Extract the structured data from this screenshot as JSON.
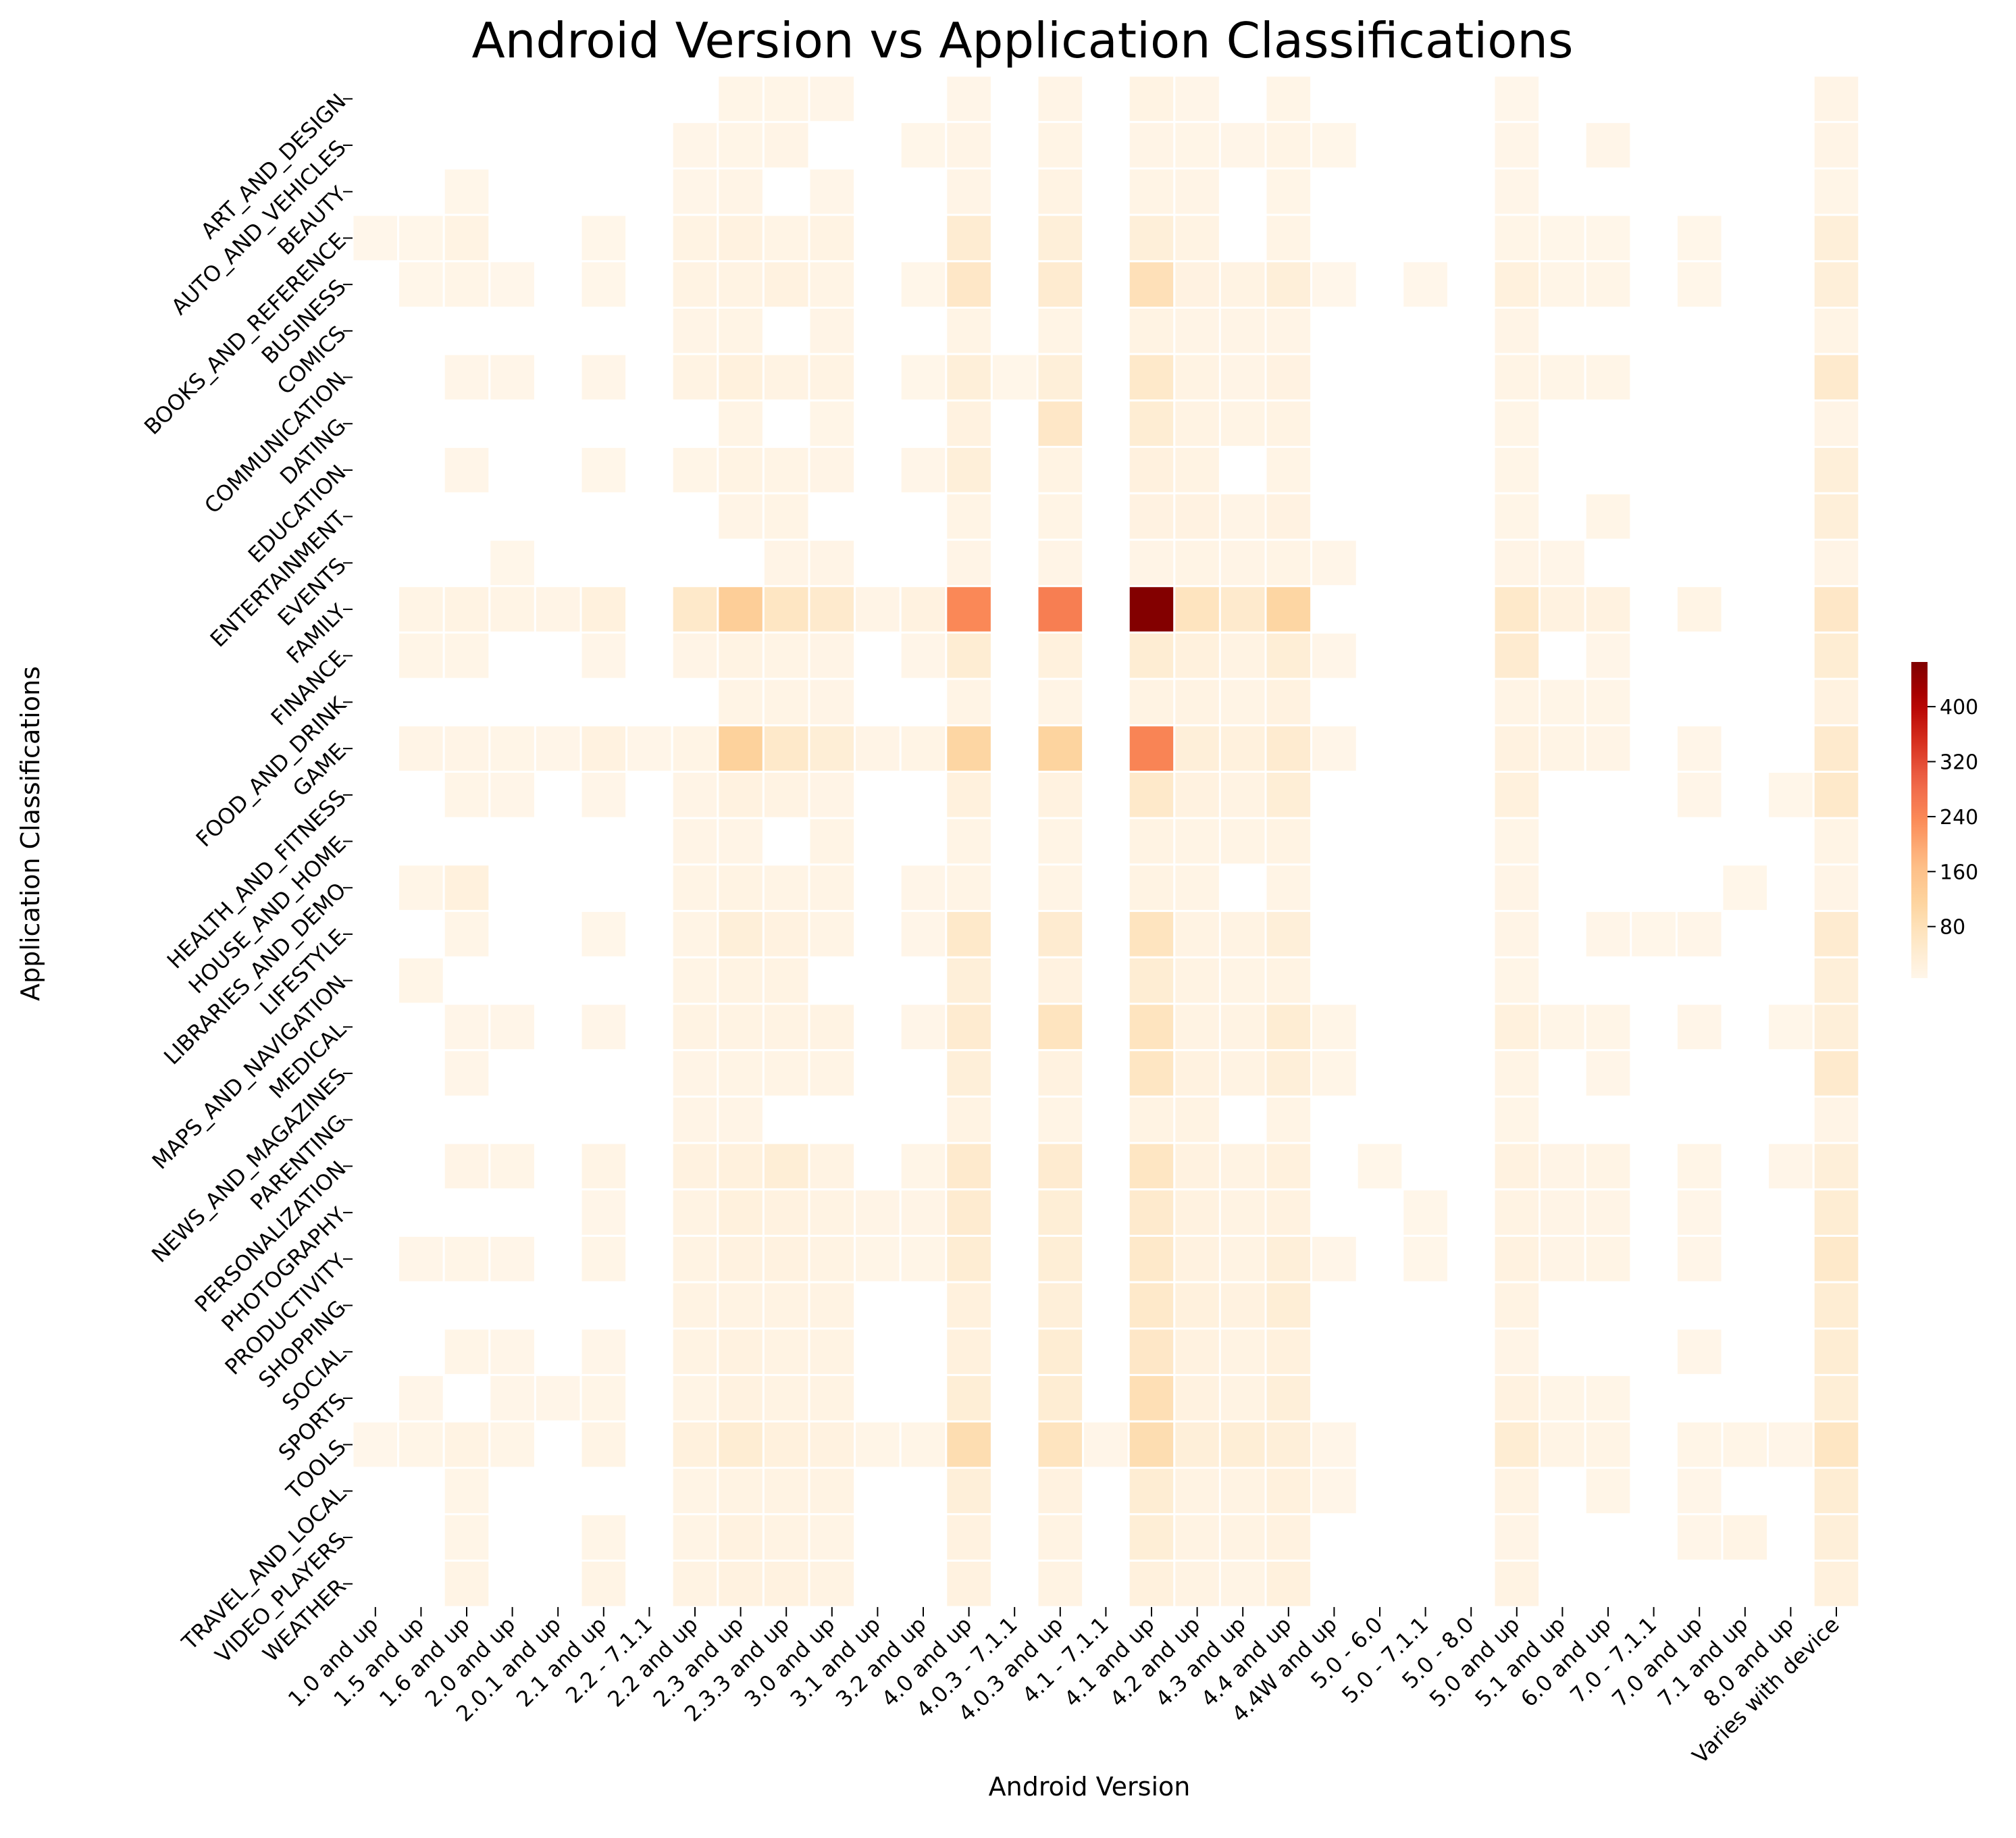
{
  "chart_data": {
    "type": "heatmap",
    "title": "Android Version vs Application Classifications",
    "xlabel": "Android Version",
    "ylabel": "Application Classifications",
    "x_categories": [
      "1.0 and up",
      "1.5 and up",
      "1.6 and up",
      "2.0 and up",
      "2.0.1 and up",
      "2.1 and up",
      "2.2 - 7.1.1",
      "2.2 and up",
      "2.3 and up",
      "2.3.3 and up",
      "3.0 and up",
      "3.1 and up",
      "3.2 and up",
      "4.0 and up",
      "4.0.3 - 7.1.1",
      "4.0.3 and up",
      "4.1 - 7.1.1",
      "4.1 and up",
      "4.2 and up",
      "4.3 and up",
      "4.4 and up",
      "4.4W and up",
      "5.0 - 6.0",
      "5.0 - 7.1.1",
      "5.0 - 8.0",
      "5.0 and up",
      "5.1 and up",
      "6.0 and up",
      "7.0 - 7.1.1",
      "7.0 and up",
      "7.1 and up",
      "8.0 and up",
      "Varies with device"
    ],
    "y_categories": [
      "ART_AND_DESIGN",
      "AUTO_AND_VEHICLES",
      "BEAUTY",
      "BOOKS_AND_REFERENCE",
      "BUSINESS",
      "COMICS",
      "COMMUNICATION",
      "DATING",
      "EDUCATION",
      "ENTERTAINMENT",
      "EVENTS",
      "FAMILY",
      "FINANCE",
      "FOOD_AND_DRINK",
      "GAME",
      "HEALTH_AND_FITNESS",
      "HOUSE_AND_HOME",
      "LIBRARIES_AND_DEMO",
      "LIFESTYLE",
      "MAPS_AND_NAVIGATION",
      "MEDICAL",
      "NEWS_AND_MAGAZINES",
      "PARENTING",
      "PERSONALIZATION",
      "PHOTOGRAPHY",
      "PRODUCTIVITY",
      "SHOPPING",
      "SOCIAL",
      "SPORTS",
      "TOOLS",
      "TRAVEL_AND_LOCAL",
      "VIDEO_PLAYERS",
      "WEATHER"
    ],
    "values": [
      [
        0,
        0,
        0,
        0,
        0,
        0,
        0,
        0,
        8,
        8,
        6,
        0,
        0,
        7,
        0,
        10,
        0,
        14,
        6,
        0,
        8,
        0,
        0,
        0,
        0,
        4,
        0,
        0,
        0,
        0,
        0,
        0,
        10
      ],
      [
        0,
        0,
        0,
        0,
        0,
        0,
        0,
        6,
        8,
        10,
        0,
        0,
        5,
        10,
        0,
        12,
        0,
        10,
        8,
        6,
        12,
        5,
        0,
        0,
        0,
        6,
        0,
        6,
        0,
        0,
        0,
        0,
        10
      ],
      [
        0,
        0,
        5,
        0,
        0,
        0,
        0,
        6,
        10,
        0,
        7,
        0,
        0,
        10,
        0,
        14,
        0,
        12,
        10,
        0,
        8,
        0,
        0,
        0,
        0,
        6,
        0,
        0,
        0,
        0,
        0,
        0,
        8
      ],
      [
        3,
        5,
        15,
        0,
        0,
        5,
        0,
        15,
        20,
        12,
        15,
        0,
        0,
        42,
        0,
        30,
        0,
        30,
        15,
        0,
        12,
        0,
        0,
        0,
        0,
        8,
        5,
        5,
        0,
        5,
        0,
        0,
        30
      ],
      [
        0,
        5,
        8,
        4,
        0,
        5,
        0,
        15,
        15,
        20,
        12,
        0,
        5,
        60,
        0,
        45,
        0,
        80,
        18,
        15,
        30,
        4,
        0,
        4,
        0,
        25,
        8,
        8,
        0,
        5,
        0,
        0,
        30
      ],
      [
        0,
        0,
        0,
        0,
        0,
        0,
        0,
        10,
        12,
        0,
        10,
        0,
        0,
        12,
        0,
        12,
        0,
        15,
        10,
        10,
        10,
        0,
        0,
        0,
        0,
        10,
        0,
        0,
        0,
        0,
        0,
        0,
        12
      ],
      [
        0,
        0,
        6,
        6,
        0,
        6,
        0,
        15,
        25,
        15,
        15,
        0,
        5,
        30,
        5,
        30,
        0,
        55,
        15,
        10,
        18,
        0,
        0,
        0,
        0,
        12,
        8,
        8,
        0,
        0,
        0,
        0,
        50
      ],
      [
        0,
        0,
        0,
        0,
        0,
        0,
        0,
        0,
        12,
        0,
        8,
        0,
        0,
        20,
        0,
        60,
        0,
        40,
        15,
        12,
        15,
        0,
        0,
        0,
        0,
        8,
        0,
        0,
        0,
        0,
        0,
        0,
        10
      ],
      [
        0,
        0,
        6,
        0,
        0,
        5,
        0,
        8,
        15,
        12,
        10,
        0,
        6,
        30,
        0,
        15,
        0,
        22,
        15,
        0,
        12,
        0,
        0,
        0,
        0,
        8,
        0,
        0,
        0,
        0,
        0,
        0,
        30
      ],
      [
        0,
        0,
        0,
        0,
        0,
        0,
        0,
        0,
        10,
        12,
        0,
        0,
        0,
        12,
        0,
        12,
        0,
        18,
        18,
        10,
        18,
        0,
        0,
        0,
        0,
        8,
        0,
        8,
        0,
        0,
        0,
        0,
        30
      ],
      [
        0,
        0,
        0,
        5,
        0,
        0,
        0,
        0,
        0,
        10,
        10,
        0,
        0,
        10,
        0,
        10,
        0,
        10,
        12,
        10,
        12,
        6,
        0,
        0,
        0,
        10,
        6,
        0,
        0,
        0,
        0,
        0,
        10
      ],
      [
        0,
        12,
        15,
        12,
        10,
        25,
        0,
        55,
        130,
        65,
        50,
        10,
        20,
        240,
        0,
        255,
        0,
        460,
        70,
        50,
        110,
        0,
        0,
        0,
        0,
        55,
        20,
        20,
        0,
        12,
        0,
        0,
        60
      ],
      [
        0,
        8,
        8,
        0,
        0,
        6,
        0,
        10,
        15,
        12,
        10,
        0,
        6,
        40,
        0,
        25,
        0,
        40,
        25,
        15,
        35,
        6,
        0,
        0,
        0,
        45,
        0,
        6,
        0,
        0,
        0,
        0,
        40
      ],
      [
        0,
        0,
        0,
        0,
        0,
        0,
        0,
        0,
        12,
        12,
        10,
        0,
        0,
        12,
        0,
        12,
        0,
        15,
        15,
        12,
        20,
        0,
        0,
        0,
        0,
        12,
        8,
        8,
        0,
        0,
        0,
        0,
        20
      ],
      [
        0,
        10,
        10,
        8,
        6,
        20,
        6,
        12,
        120,
        55,
        35,
        10,
        12,
        110,
        0,
        115,
        0,
        245,
        30,
        25,
        45,
        6,
        0,
        0,
        0,
        20,
        12,
        10,
        0,
        6,
        0,
        0,
        50
      ],
      [
        0,
        0,
        8,
        6,
        0,
        6,
        0,
        10,
        20,
        15,
        10,
        0,
        0,
        25,
        0,
        20,
        0,
        55,
        20,
        15,
        35,
        0,
        0,
        0,
        0,
        25,
        0,
        0,
        0,
        6,
        0,
        5,
        55
      ],
      [
        0,
        0,
        0,
        0,
        0,
        0,
        0,
        10,
        10,
        0,
        12,
        0,
        0,
        12,
        0,
        12,
        0,
        15,
        12,
        12,
        15,
        0,
        0,
        0,
        0,
        8,
        0,
        0,
        0,
        0,
        0,
        0,
        12
      ],
      [
        0,
        8,
        25,
        0,
        0,
        0,
        0,
        12,
        15,
        12,
        12,
        0,
        6,
        12,
        0,
        12,
        0,
        15,
        12,
        0,
        12,
        0,
        0,
        0,
        0,
        10,
        0,
        0,
        0,
        0,
        5,
        0,
        10
      ],
      [
        0,
        0,
        8,
        0,
        0,
        5,
        0,
        12,
        30,
        20,
        12,
        0,
        6,
        55,
        0,
        45,
        0,
        70,
        15,
        15,
        30,
        0,
        0,
        0,
        0,
        10,
        0,
        6,
        5,
        6,
        0,
        0,
        45
      ],
      [
        0,
        8,
        0,
        0,
        0,
        0,
        0,
        12,
        15,
        15,
        0,
        0,
        0,
        30,
        0,
        20,
        0,
        40,
        15,
        12,
        15,
        0,
        0,
        0,
        0,
        8,
        0,
        0,
        0,
        0,
        0,
        0,
        30
      ],
      [
        0,
        0,
        6,
        6,
        0,
        6,
        0,
        15,
        15,
        15,
        15,
        0,
        6,
        45,
        0,
        70,
        0,
        70,
        15,
        15,
        40,
        8,
        0,
        0,
        0,
        25,
        8,
        8,
        0,
        6,
        0,
        5,
        30
      ],
      [
        0,
        0,
        6,
        0,
        0,
        0,
        0,
        10,
        12,
        12,
        12,
        0,
        0,
        30,
        0,
        20,
        0,
        65,
        20,
        15,
        30,
        8,
        0,
        0,
        0,
        12,
        0,
        6,
        0,
        0,
        0,
        0,
        50
      ],
      [
        0,
        0,
        0,
        0,
        0,
        0,
        0,
        10,
        10,
        0,
        0,
        0,
        0,
        15,
        0,
        12,
        0,
        15,
        15,
        0,
        12,
        0,
        0,
        0,
        0,
        8,
        0,
        0,
        0,
        0,
        0,
        0,
        10
      ],
      [
        0,
        0,
        10,
        8,
        0,
        12,
        0,
        20,
        25,
        35,
        15,
        0,
        8,
        50,
        0,
        45,
        0,
        65,
        20,
        15,
        25,
        0,
        5,
        0,
        0,
        20,
        10,
        12,
        0,
        8,
        0,
        6,
        30
      ],
      [
        0,
        0,
        0,
        0,
        0,
        6,
        0,
        15,
        25,
        20,
        15,
        10,
        10,
        45,
        0,
        35,
        0,
        50,
        20,
        15,
        20,
        0,
        0,
        5,
        0,
        15,
        10,
        10,
        0,
        6,
        0,
        0,
        40
      ],
      [
        0,
        6,
        8,
        6,
        0,
        8,
        0,
        15,
        20,
        20,
        15,
        8,
        8,
        40,
        0,
        35,
        0,
        55,
        20,
        15,
        30,
        6,
        0,
        5,
        0,
        20,
        10,
        12,
        0,
        6,
        0,
        0,
        55
      ],
      [
        0,
        0,
        0,
        0,
        0,
        0,
        0,
        15,
        15,
        15,
        15,
        0,
        0,
        25,
        0,
        30,
        0,
        55,
        25,
        20,
        35,
        0,
        0,
        0,
        0,
        15,
        0,
        0,
        0,
        0,
        0,
        0,
        40
      ],
      [
        0,
        0,
        8,
        6,
        0,
        6,
        0,
        15,
        20,
        15,
        15,
        0,
        0,
        25,
        0,
        40,
        0,
        60,
        20,
        15,
        25,
        0,
        0,
        0,
        0,
        10,
        0,
        0,
        0,
        6,
        0,
        0,
        40
      ],
      [
        0,
        6,
        0,
        6,
        6,
        8,
        0,
        12,
        20,
        15,
        15,
        0,
        0,
        35,
        0,
        40,
        0,
        85,
        20,
        15,
        30,
        0,
        0,
        0,
        0,
        20,
        8,
        8,
        0,
        0,
        0,
        0,
        35
      ],
      [
        4,
        8,
        15,
        8,
        0,
        12,
        0,
        25,
        40,
        25,
        20,
        8,
        8,
        90,
        0,
        70,
        6,
        90,
        30,
        35,
        30,
        6,
        0,
        0,
        0,
        40,
        12,
        12,
        0,
        8,
        8,
        6,
        65
      ],
      [
        0,
        0,
        8,
        0,
        0,
        0,
        0,
        12,
        15,
        15,
        15,
        0,
        0,
        30,
        0,
        20,
        0,
        40,
        15,
        15,
        25,
        6,
        0,
        0,
        0,
        15,
        0,
        8,
        0,
        6,
        0,
        0,
        40
      ],
      [
        0,
        0,
        8,
        0,
        0,
        8,
        0,
        12,
        20,
        15,
        12,
        0,
        0,
        20,
        0,
        15,
        0,
        35,
        15,
        15,
        20,
        0,
        0,
        0,
        0,
        10,
        0,
        0,
        0,
        6,
        12,
        0,
        30
      ],
      [
        0,
        0,
        12,
        0,
        0,
        12,
        0,
        15,
        20,
        20,
        15,
        0,
        0,
        20,
        0,
        15,
        0,
        25,
        15,
        12,
        25,
        0,
        0,
        0,
        0,
        15,
        0,
        0,
        0,
        0,
        0,
        0,
        25
      ]
    ],
    "colormap": "OrRd",
    "color_range": [
      0,
      465
    ],
    "colorbar_ticks": [
      80,
      160,
      240,
      320,
      400
    ],
    "grid": false,
    "legend": "right"
  }
}
